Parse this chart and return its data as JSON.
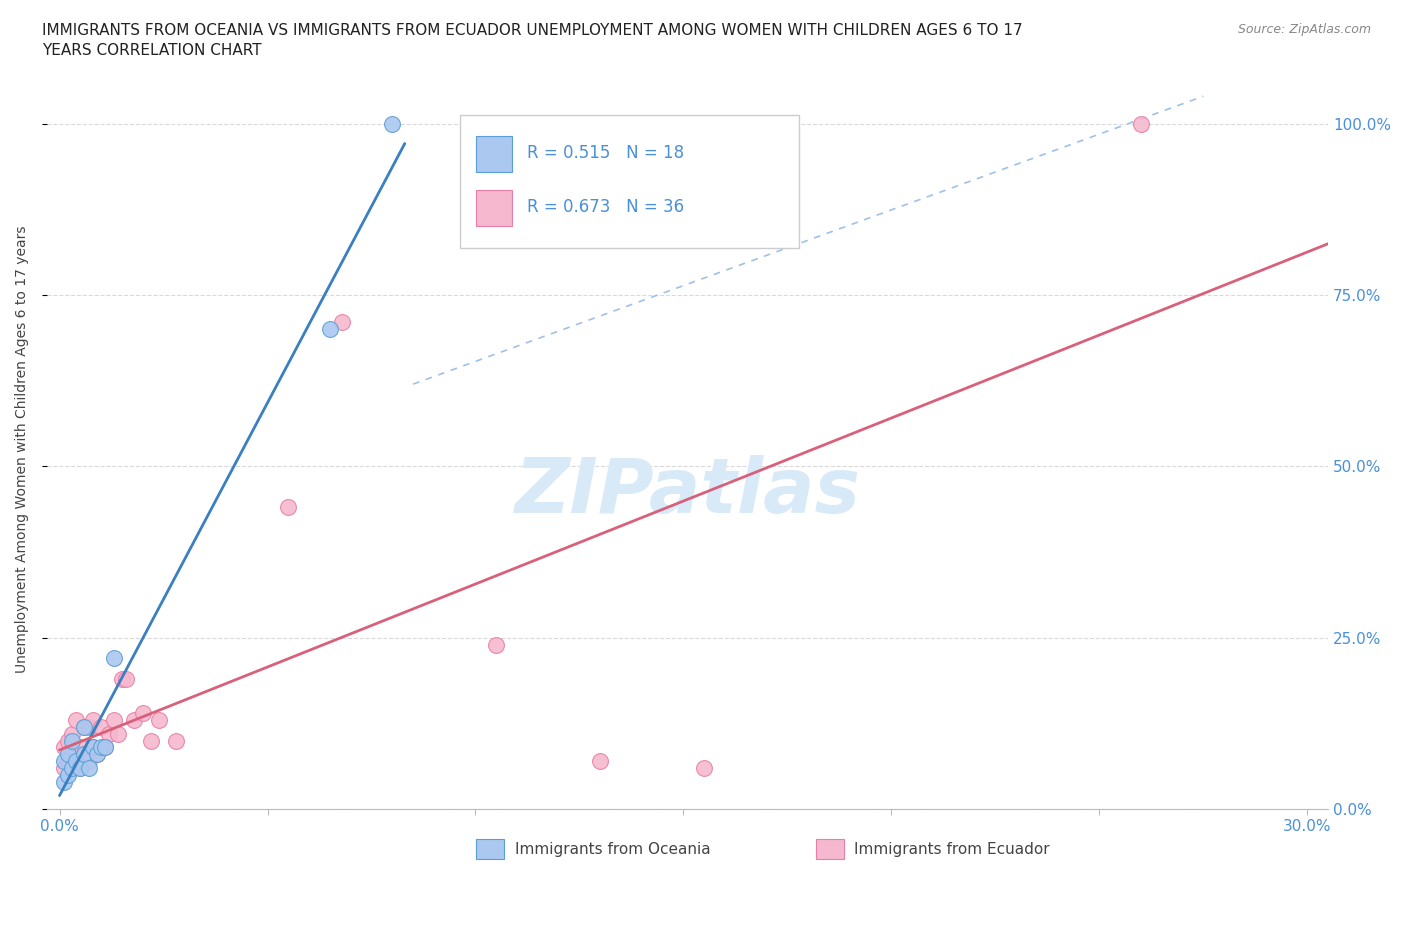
{
  "title": "IMMIGRANTS FROM OCEANIA VS IMMIGRANTS FROM ECUADOR UNEMPLOYMENT AMONG WOMEN WITH CHILDREN AGES 6 TO 17\nYEARS CORRELATION CHART",
  "source": "Source: ZipAtlas.com",
  "ylabel": "Unemployment Among Women with Children Ages 6 to 17 years",
  "ylim": [
    0.0,
    1.05
  ],
  "xlim": [
    -0.003,
    0.305
  ],
  "yticks": [
    0.0,
    0.25,
    0.5,
    0.75,
    1.0
  ],
  "ytick_labels": [
    "0.0%",
    "25.0%",
    "50.0%",
    "75.0%",
    "100.0%"
  ],
  "xtick_labels": [
    "0.0%",
    "",
    "",
    "",
    "",
    "",
    "30.0%"
  ],
  "legend_oceania": "R = 0.515   N = 18",
  "legend_ecuador": "R = 0.673   N = 36",
  "color_oceania_fill": "#aac8f0",
  "color_ecuador_fill": "#f5b8ce",
  "color_oceania_edge": "#5a9fd4",
  "color_ecuador_edge": "#e87fa8",
  "color_line_oceania": "#3a7fc1",
  "color_line_ecuador": "#d9607a",
  "color_tick_label": "#4a90d9",
  "color_dashed": "#a0c0e8",
  "watermark_color": "#d8eaf8",
  "background_color": "#ffffff",
  "grid_color": "#d0d0d0",
  "scatter_size": 130,
  "oceania_x": [
    0.001,
    0.001,
    0.002,
    0.002,
    0.003,
    0.003,
    0.004,
    0.005,
    0.006,
    0.006,
    0.007,
    0.008,
    0.009,
    0.01,
    0.011,
    0.013,
    0.065,
    0.08
  ],
  "oceania_y": [
    0.04,
    0.07,
    0.05,
    0.08,
    0.06,
    0.1,
    0.07,
    0.06,
    0.08,
    0.12,
    0.06,
    0.09,
    0.08,
    0.09,
    0.09,
    0.22,
    0.7,
    1.0
  ],
  "ecuador_x": [
    0.001,
    0.001,
    0.002,
    0.002,
    0.003,
    0.003,
    0.003,
    0.004,
    0.004,
    0.005,
    0.005,
    0.006,
    0.006,
    0.007,
    0.007,
    0.008,
    0.008,
    0.009,
    0.01,
    0.011,
    0.012,
    0.013,
    0.014,
    0.015,
    0.016,
    0.018,
    0.02,
    0.022,
    0.024,
    0.028,
    0.055,
    0.068,
    0.105,
    0.13,
    0.155,
    0.26
  ],
  "ecuador_y": [
    0.06,
    0.09,
    0.07,
    0.1,
    0.06,
    0.08,
    0.11,
    0.07,
    0.13,
    0.06,
    0.09,
    0.08,
    0.12,
    0.07,
    0.12,
    0.09,
    0.13,
    0.08,
    0.12,
    0.09,
    0.11,
    0.13,
    0.11,
    0.19,
    0.19,
    0.13,
    0.14,
    0.1,
    0.13,
    0.1,
    0.44,
    0.71,
    0.24,
    0.07,
    0.06,
    1.0
  ]
}
